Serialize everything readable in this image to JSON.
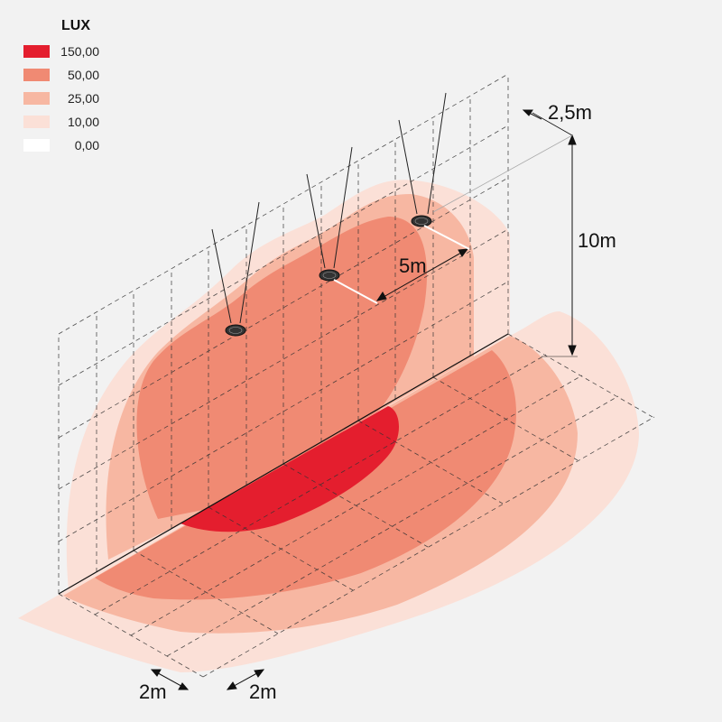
{
  "legend": {
    "title": "LUX",
    "items": [
      {
        "label": "150,00",
        "color": "#e41e2e"
      },
      {
        "label": "50,00",
        "color": "#f08a73"
      },
      {
        "label": "25,00",
        "color": "#f7b7a2"
      },
      {
        "label": "10,00",
        "color": "#fbe0d7"
      },
      {
        "label": "0,00",
        "color": "#ffffff"
      }
    ]
  },
  "dimensions": {
    "offset_top": "2,5m",
    "height": "10m",
    "spacing": "5m",
    "grid_left": "2m",
    "grid_right": "2m"
  },
  "colors": {
    "background": "#f2f2f2",
    "zone_10": "#fbe0d7",
    "zone_25": "#f7b7a2",
    "zone_50": "#f08a73",
    "zone_150": "#e41e2e"
  },
  "luminaires": {
    "count": 3,
    "icon": "floodlight-icon"
  }
}
